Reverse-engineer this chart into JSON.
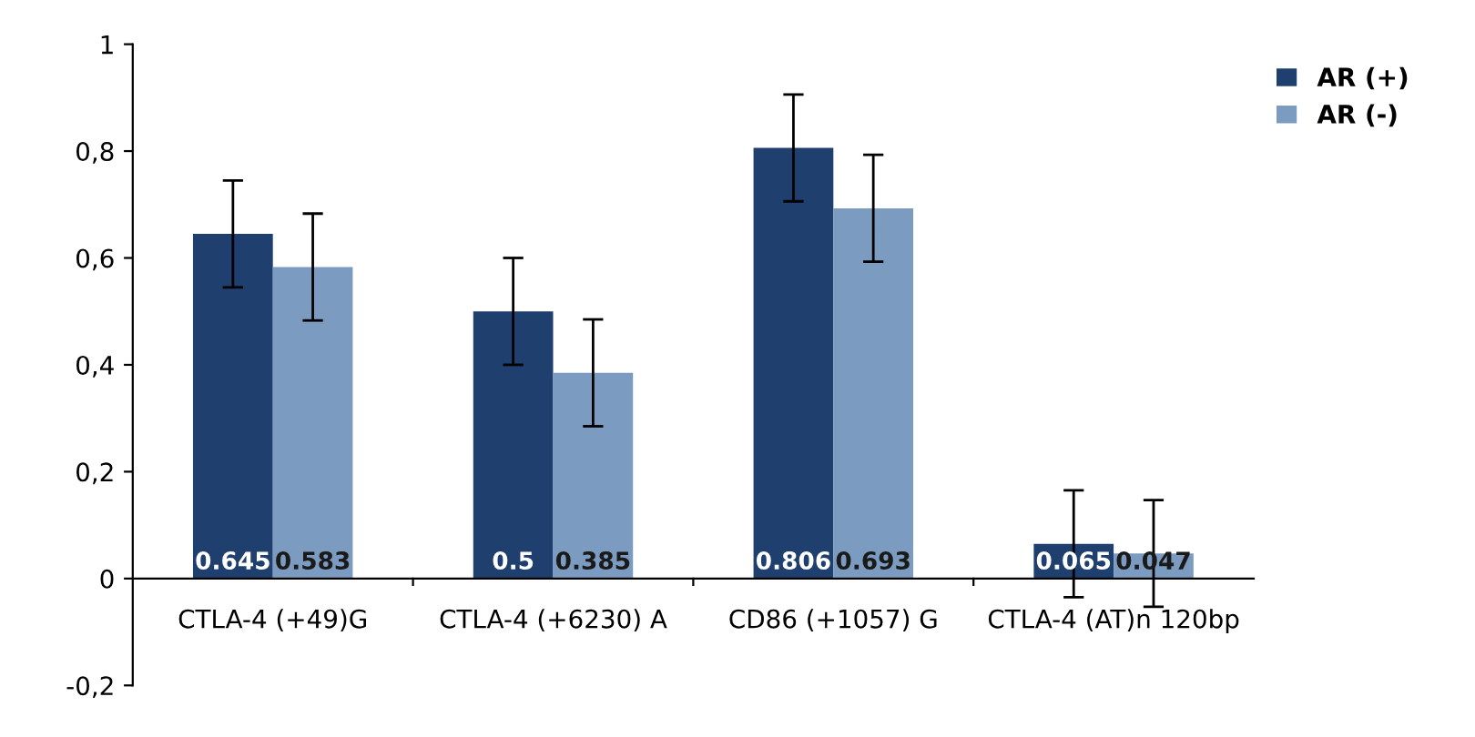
{
  "chart_data": {
    "type": "bar",
    "categories": [
      "CTLA-4 (+49)G",
      "CTLA-4 (+6230) A",
      "CD86 (+1057) G",
      "CTLA-4 (AT)n 120bp"
    ],
    "series": [
      {
        "name": "AR (+)",
        "color": "#1f3f6e",
        "values": [
          0.645,
          0.5,
          0.806,
          0.065
        ],
        "errors": [
          0.1,
          0.1,
          0.1,
          0.1
        ]
      },
      {
        "name": "AR (-)",
        "color": "#7b9cc0",
        "values": [
          0.583,
          0.385,
          0.693,
          0.047
        ],
        "errors": [
          0.1,
          0.1,
          0.1,
          0.1
        ]
      }
    ],
    "ylim": [
      -0.2,
      1
    ],
    "yticks": [
      {
        "value": -0.2,
        "label": "-0,2"
      },
      0,
      {
        "value": 0.2,
        "label": "0,2"
      },
      {
        "value": 0.4,
        "label": "0,4"
      },
      {
        "value": 0.6,
        "label": "0,6"
      },
      {
        "value": 0.8,
        "label": "0,8"
      },
      1
    ],
    "data_labels": true,
    "legend": "top right",
    "grid": false
  }
}
